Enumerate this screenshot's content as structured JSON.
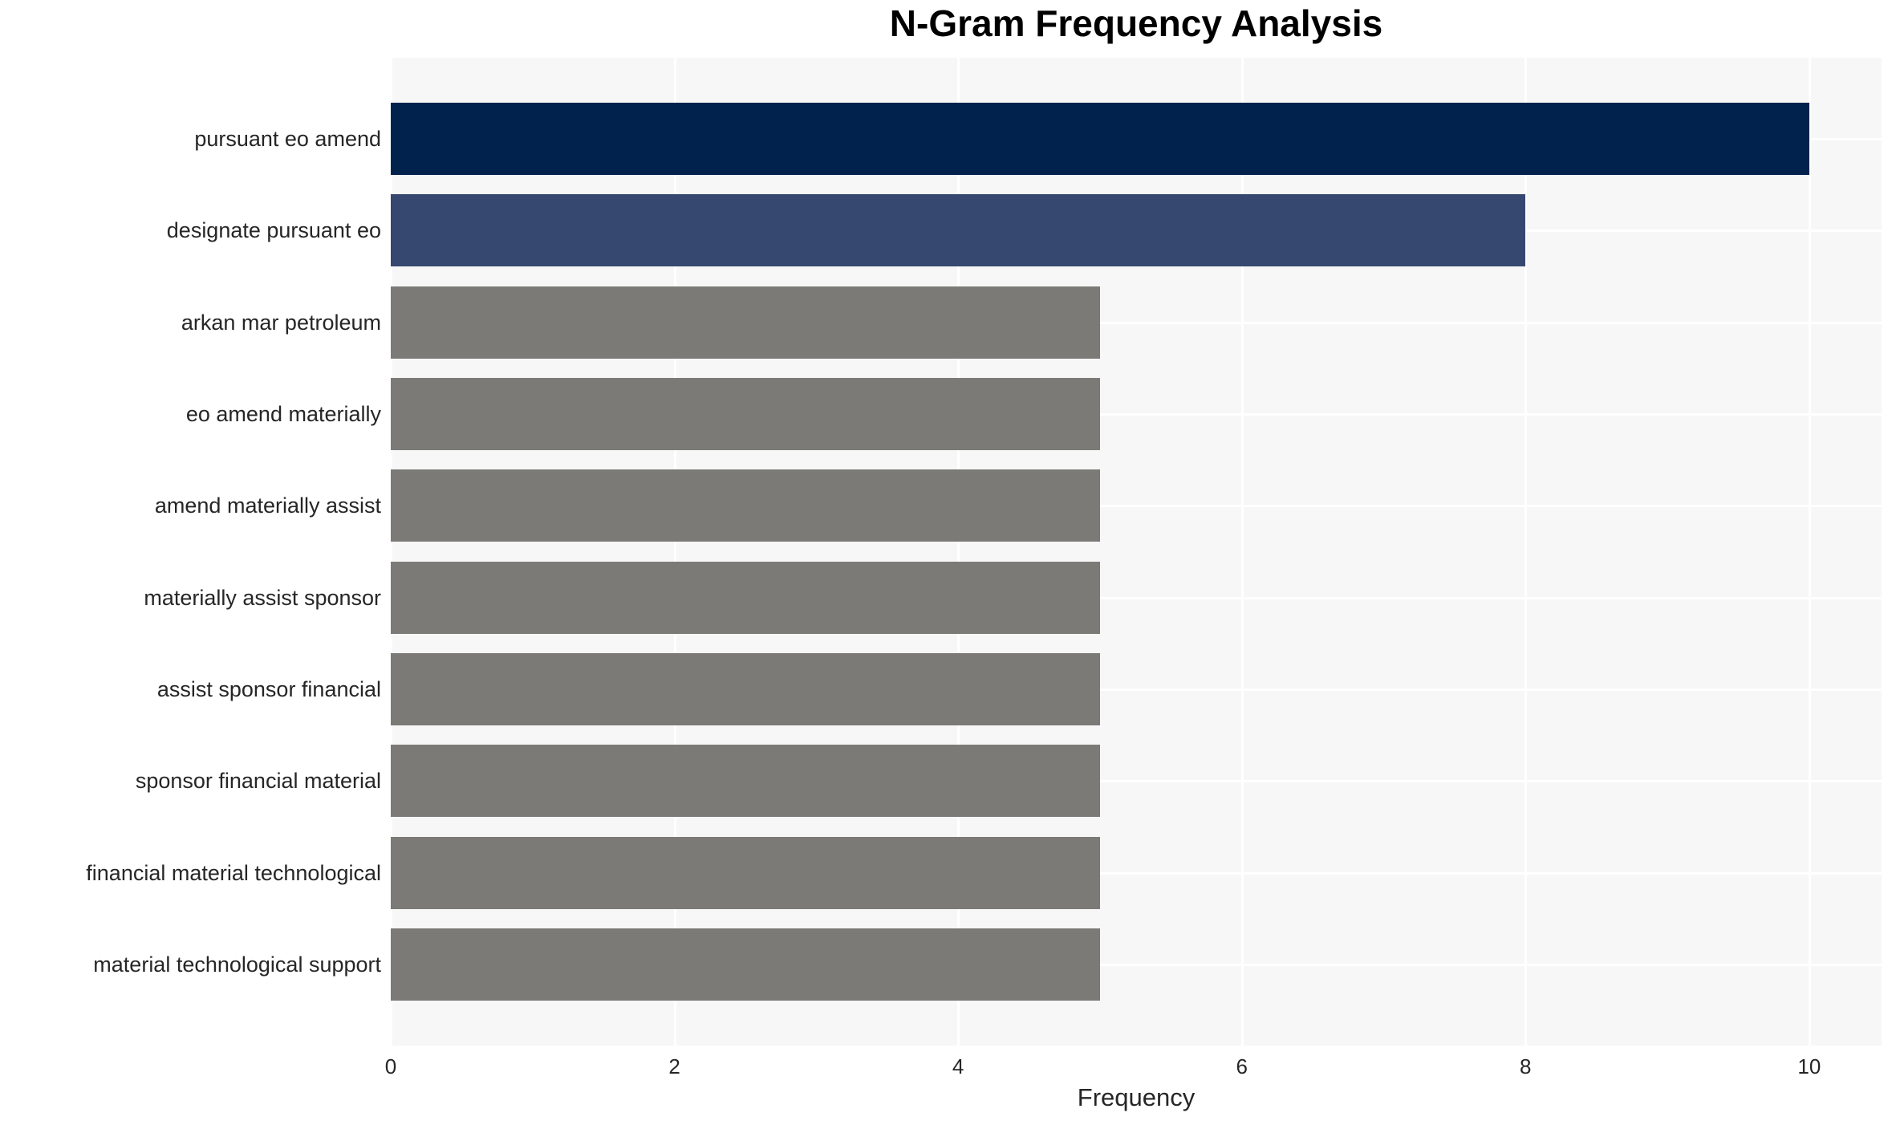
{
  "chart_data": {
    "type": "bar",
    "orientation": "horizontal",
    "title": "N-Gram Frequency Analysis",
    "xlabel": "Frequency",
    "ylabel": "",
    "categories": [
      "pursuant eo amend",
      "designate pursuant eo",
      "arkan mar petroleum",
      "eo amend materially",
      "amend materially assist",
      "materially assist sponsor",
      "assist sponsor financial",
      "sponsor financial material",
      "financial material technological",
      "material technological support"
    ],
    "values": [
      10,
      8,
      5,
      5,
      5,
      5,
      5,
      5,
      5,
      5
    ],
    "bar_colors": [
      "#01224d",
      "#36486f",
      "#7b7a77",
      "#7b7a77",
      "#7b7a77",
      "#7b7a77",
      "#7b7a77",
      "#7b7a77",
      "#7b7a77",
      "#7b7a77"
    ],
    "xticks": [
      0,
      2,
      4,
      6,
      8,
      10
    ],
    "xlim": [
      0,
      10.51
    ],
    "grid": true,
    "legend": "none",
    "colors": {
      "plot_background": "#f7f7f7",
      "grid_color": "#ffffff",
      "text_color": "#262626",
      "title_color": "#000000"
    }
  }
}
